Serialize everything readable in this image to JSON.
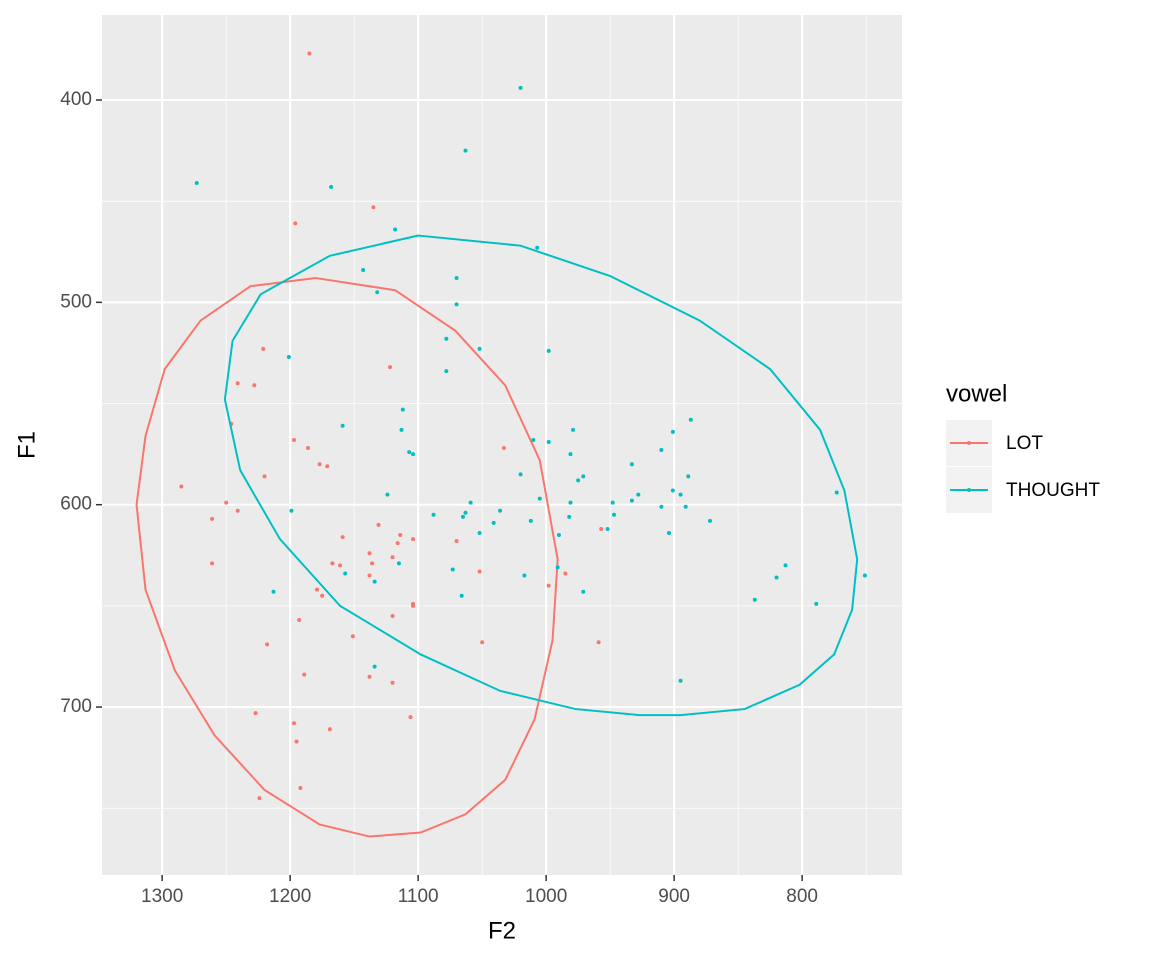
{
  "chart_data": {
    "type": "scatter",
    "x_label": "F2",
    "y_label": "F1",
    "xlim": [
      1347,
      722
    ],
    "ylim": [
      358,
      783
    ],
    "x_reversed": true,
    "y_reversed": true,
    "xticks": [
      1300,
      1200,
      1100,
      1000,
      900,
      800
    ],
    "yticks": [
      400,
      500,
      600,
      700
    ],
    "minor_xticks": [
      1250,
      1150,
      1050,
      950,
      850,
      750
    ],
    "minor_yticks": [
      450,
      550,
      650,
      750
    ],
    "grid": true,
    "legend_title": "vowel",
    "legend": "right",
    "series": [
      {
        "name": "LOT",
        "color": "#F8766D",
        "x": [
          1185,
          1196,
          1135,
          1221,
          1122,
          1241,
          1228,
          1246,
          1197,
          1186,
          1177,
          1171,
          1285,
          1220,
          1250,
          1241,
          1261,
          1131,
          1159,
          1114,
          1104,
          1116,
          1070,
          1033,
          1261,
          1167,
          1161,
          1138,
          1136,
          1120,
          1138,
          1052,
          985,
          998,
          1179,
          1175,
          1120,
          1104,
          1104,
          1193,
          1151,
          1050,
          959,
          1218,
          1189,
          1138,
          1120,
          1227,
          1197,
          1106,
          1169,
          1195,
          1192,
          1224,
          957
        ],
        "y": [
          377,
          461,
          453,
          523,
          532,
          540,
          541,
          560,
          568,
          572,
          580,
          581,
          591,
          586,
          599,
          603,
          607,
          610,
          616,
          615,
          617,
          619,
          618,
          572,
          629,
          629,
          630,
          624,
          629,
          626,
          635,
          633,
          634,
          640,
          642,
          645,
          655,
          649,
          650,
          657,
          665,
          668,
          668,
          669,
          684,
          685,
          688,
          703,
          708,
          705,
          711,
          717,
          740,
          745,
          612
        ],
        "ellipse": {
          "x": [
            1180,
            1118,
            1071,
            1032,
            1005,
            991,
            995,
            1009,
            1032,
            1063,
            1098,
            1138,
            1177,
            1220,
            1259,
            1290,
            1313,
            1320,
            1313,
            1298,
            1270,
            1231
          ],
          "y": [
            488,
            494,
            514,
            541,
            578,
            627,
            667,
            706,
            736,
            753,
            762,
            764,
            758,
            741,
            714,
            682,
            642,
            600,
            566,
            533,
            509,
            492
          ]
        }
      },
      {
        "name": "THOUGHT",
        "color": "#00BFC4",
        "x": [
          1020,
          1063,
          1273,
          1168,
          1118,
          1007,
          1143,
          1070,
          1070,
          1132,
          1201,
          1078,
          1052,
          998,
          1078,
          1112,
          1159,
          1113,
          887,
          901,
          979,
          1107,
          1104,
          1010,
          998,
          910,
          981,
          889,
          971,
          975,
          933,
          1020,
          1124,
          1199,
          1088,
          1063,
          1065,
          1036,
          1041,
          1012,
          1059,
          1005,
          981,
          982,
          928,
          933,
          901,
          895,
          910,
          891,
          948,
          952,
          947,
          990,
          904,
          872,
          1052,
          773,
          1073,
          1017,
          991,
          971,
          1066,
          1157,
          1134,
          1115,
          1213,
          1134,
          895,
          837,
          820,
          813,
          789,
          751
        ],
        "y": [
          394,
          425,
          441,
          443,
          464,
          473,
          484,
          488,
          501,
          495,
          527,
          518,
          523,
          524,
          534,
          553,
          561,
          563,
          558,
          564,
          563,
          574,
          575,
          568,
          569,
          573,
          575,
          586,
          586,
          588,
          580,
          585,
          595,
          603,
          605,
          604,
          606,
          603,
          609,
          608,
          599,
          597,
          599,
          606,
          595,
          598,
          593,
          595,
          601,
          601,
          599,
          612,
          605,
          615,
          614,
          608,
          614,
          594,
          632,
          635,
          631,
          643,
          645,
          634,
          638,
          629,
          643,
          680,
          687,
          647,
          636,
          630,
          649,
          635
        ],
        "ellipse": {
          "x": [
            1100,
            1020,
            950,
            880,
            825,
            786,
            767,
            757,
            761,
            775,
            802,
            845,
            895,
            927,
            977,
            1036,
            1098,
            1161,
            1208,
            1239,
            1251,
            1245,
            1223,
            1169
          ],
          "y": [
            467,
            472,
            487,
            509,
            533,
            563,
            593,
            627,
            652,
            674,
            689,
            701,
            704,
            704,
            701,
            692,
            674,
            650,
            617,
            583,
            548,
            519,
            496,
            477
          ]
        }
      }
    ]
  }
}
